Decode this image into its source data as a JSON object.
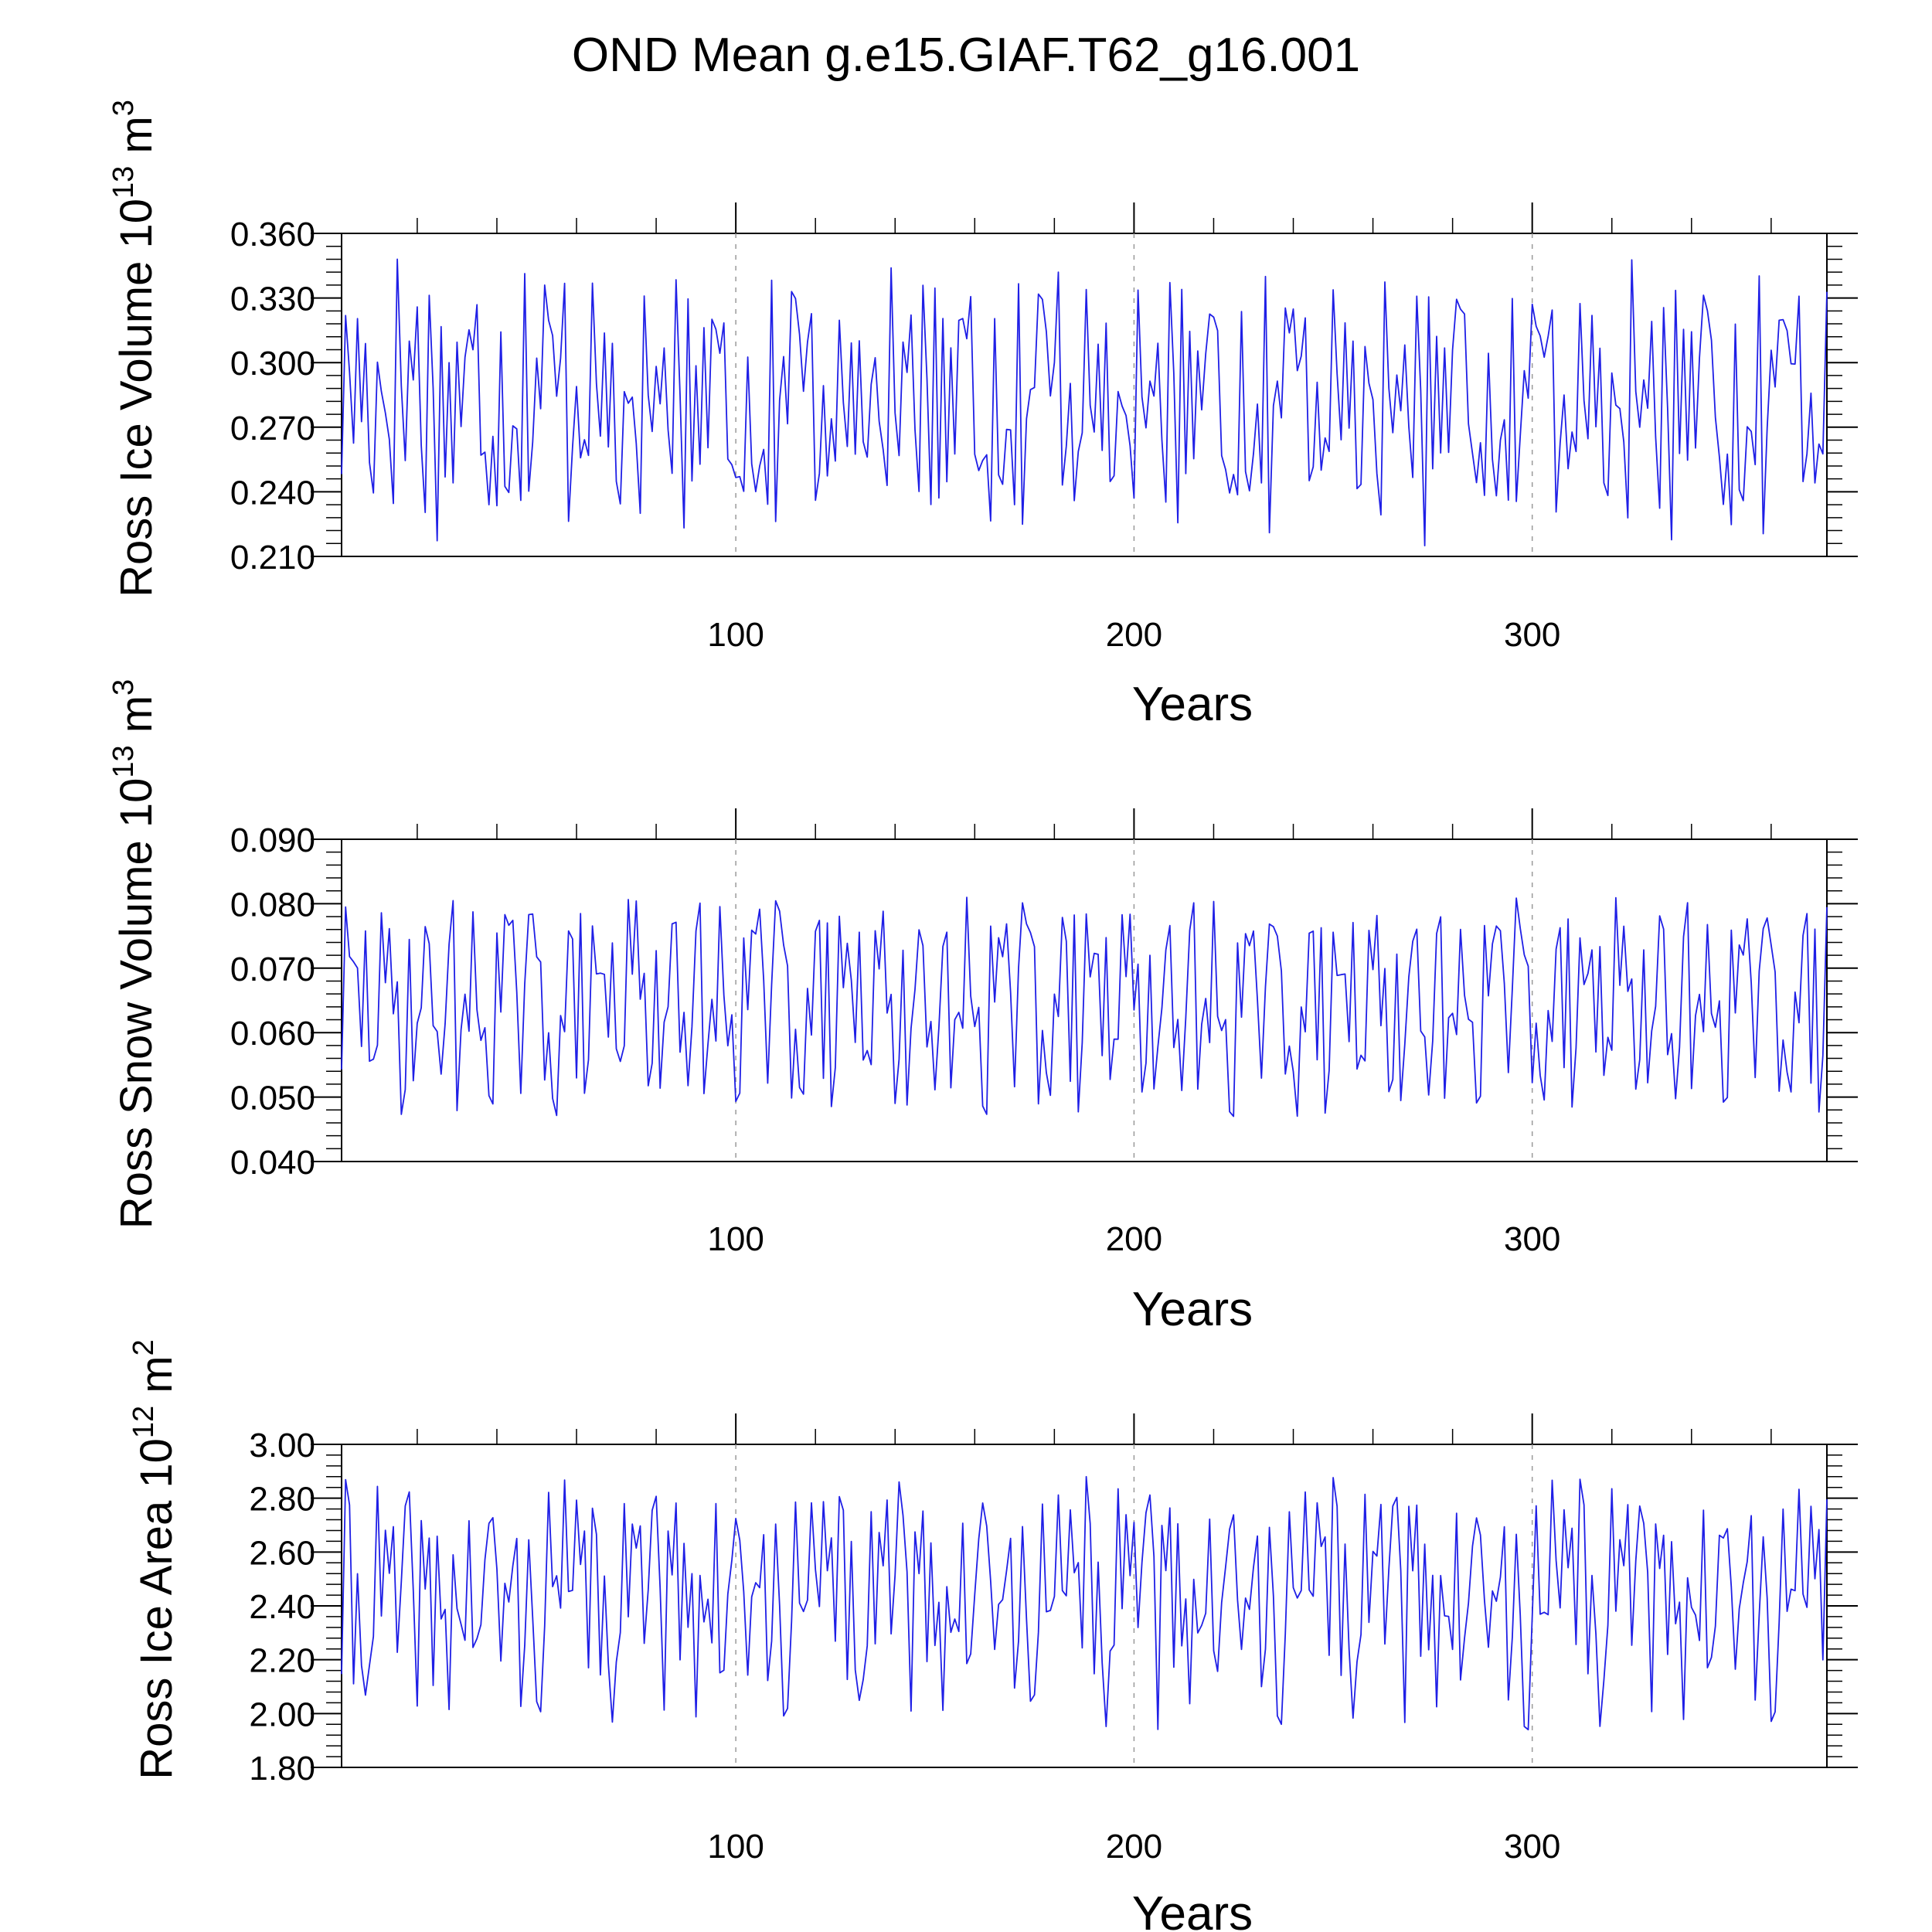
{
  "figure": {
    "title": "OND Mean g.e15.GIAF.T62_g16.001"
  },
  "colors": {
    "series": "#1f1fe6",
    "axis": "#000000",
    "grid": "#9a9a9a"
  },
  "chart_data": [
    {
      "type": "line",
      "name": "ross-ice-volume",
      "title": "",
      "xlabel": "Years",
      "ylabel": {
        "text": "Ross Ice Volume 10",
        "sup": "13",
        "unit": " m",
        "unit_sup": "3"
      },
      "xlim": [
        1,
        374
      ],
      "ylim": [
        0.21,
        0.36
      ],
      "yticks": [
        "0.210",
        "0.240",
        "0.270",
        "0.300",
        "0.330",
        "0.360"
      ],
      "ytick_values": [
        0.21,
        0.24,
        0.27,
        0.3,
        0.33,
        0.36
      ],
      "xticks": [
        100,
        200,
        300
      ],
      "xtick_labels": [
        "100",
        "200",
        "300"
      ],
      "grid_x": [
        100,
        200,
        300
      ],
      "series": [
        {
          "name": "Ross Ice Volume",
          "seed": 17,
          "min": 0.215,
          "max": 0.348,
          "mean": 0.283,
          "period": 62
        }
      ]
    },
    {
      "type": "line",
      "name": "ross-snow-volume",
      "title": "",
      "xlabel": "Years",
      "ylabel": {
        "text": "Ross Snow Volume 10",
        "sup": "13",
        "unit": " m",
        "unit_sup": "3"
      },
      "xlim": [
        1,
        374
      ],
      "ylim": [
        0.04,
        0.09
      ],
      "yticks": [
        "0.040",
        "0.050",
        "0.060",
        "0.070",
        "0.080",
        "0.090"
      ],
      "ytick_values": [
        0.04,
        0.05,
        0.06,
        0.07,
        0.08,
        0.09
      ],
      "xticks": [
        100,
        200,
        300
      ],
      "xtick_labels": [
        "100",
        "200",
        "300"
      ],
      "grid_x": [
        100,
        200,
        300
      ],
      "series": [
        {
          "name": "Ross Snow Volume",
          "seed": 29,
          "min": 0.047,
          "max": 0.081,
          "mean": 0.065,
          "period": 62
        }
      ]
    },
    {
      "type": "line",
      "name": "ross-ice-area",
      "title": "",
      "xlabel": "Years",
      "ylabel": {
        "text": "Ross Ice Area 10",
        "sup": "12",
        "unit": " m",
        "unit_sup": "2"
      },
      "xlim": [
        1,
        374
      ],
      "ylim": [
        1.8,
        3.0
      ],
      "yticks": [
        "1.80",
        "2.00",
        "2.20",
        "2.40",
        "2.60",
        "2.80",
        "3.00"
      ],
      "ytick_values": [
        1.8,
        2.0,
        2.2,
        2.4,
        2.6,
        2.8,
        3.0
      ],
      "xticks": [
        100,
        200,
        300
      ],
      "xtick_labels": [
        "100",
        "200",
        "300"
      ],
      "grid_x": [
        100,
        200,
        300
      ],
      "series": [
        {
          "name": "Ross Ice Area",
          "seed": 41,
          "min": 1.94,
          "max": 2.88,
          "mean": 2.4,
          "period": 62
        }
      ]
    }
  ]
}
